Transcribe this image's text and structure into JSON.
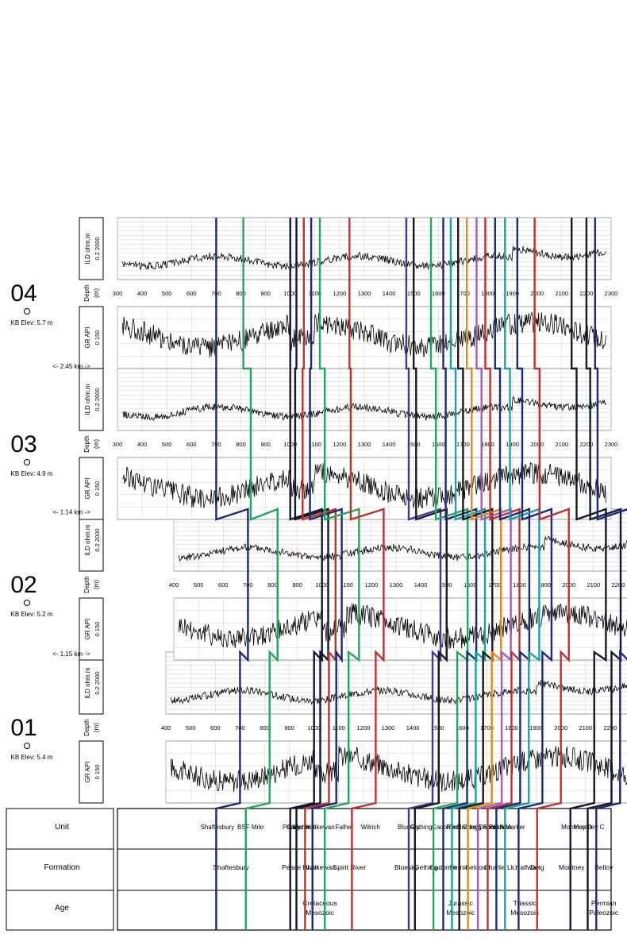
{
  "wells": [
    {
      "name": "01",
      "kb": "KB Elev: 5.4 m",
      "top_depth": 400
    },
    {
      "name": "02",
      "kb": "KB Elev: 5.2 m",
      "top_depth": 400
    },
    {
      "name": "03",
      "kb": "KB Elev: 4.9 m",
      "top_depth": 300
    },
    {
      "name": "04",
      "kb": "KB Elev: 5.7 m",
      "top_depth": 300
    }
  ],
  "spacings": [
    "<- 1.15 km ->",
    "<- 1.14 km ->",
    "<- 2.45 km ->"
  ],
  "track_headers": {
    "gr": {
      "label": "GR",
      "unit": "API",
      "min": "0",
      "max": "150"
    },
    "ild": {
      "label": "ILD",
      "unit": "ohm.m",
      "min": "0.2",
      "max": "2000"
    },
    "depth": {
      "label": "Depth",
      "unit": "(m)"
    }
  },
  "depth_ticks": [
    300,
    400,
    500,
    600,
    700,
    800,
    900,
    1000,
    1100,
    1200,
    1300,
    1400,
    1500,
    1600,
    1700,
    1800,
    1900,
    2000,
    2100,
    2200,
    2300
  ],
  "legend": {
    "headers": {
      "age": "Age",
      "formation": "Formation",
      "unit": "Unit"
    },
    "units": [
      {
        "label": "Shaftesbury",
        "depth": 705
      },
      {
        "label": "BSF Mrkr",
        "depth": 840
      },
      {
        "label": "Paddy",
        "depth": 1005
      },
      {
        "label": "Cadotte",
        "depth": 1030
      },
      {
        "label": "Harmon",
        "depth": 1060
      },
      {
        "label": "Notikewan",
        "depth": 1120
      },
      {
        "label": "Falher",
        "depth": 1220
      },
      {
        "label": "Wilrich",
        "depth": 1325
      },
      {
        "label": "Bluesky",
        "depth": 1480
      },
      {
        "label": "Gething",
        "depth": 1530
      },
      {
        "label": "Cadomin",
        "depth": 1625
      },
      {
        "label": "Rock Creek",
        "depth": 1700
      },
      {
        "label": "Nordegg",
        "depth": 1725
      },
      {
        "label": "Debolt",
        "depth": 1800
      },
      {
        "label": "Shunda",
        "depth": 1825
      },
      {
        "label": "Pekisko",
        "depth": 1850
      },
      {
        "label": "A Marker",
        "depth": 1900
      },
      {
        "label": "Montney D",
        "depth": 2160
      },
      {
        "label": "Montney C",
        "depth": 2210
      }
    ],
    "formations": [
      {
        "label": "Shaftesbury",
        "depth": 760
      },
      {
        "label": "Peace River",
        "depth": 1040
      },
      {
        "label": "Notikewan",
        "depth": 1120
      },
      {
        "label": "Spirit River",
        "depth": 1240
      },
      {
        "label": "Bluesky",
        "depth": 1470
      },
      {
        "label": "Gething",
        "depth": 1550
      },
      {
        "label": "Cadomin",
        "depth": 1620
      },
      {
        "label": "Fernie",
        "depth": 1685
      },
      {
        "label": "Belcourt",
        "depth": 1760
      },
      {
        "label": "Charlie Lk.",
        "depth": 1850
      },
      {
        "label": "Halfway",
        "depth": 1960
      },
      {
        "label": "Doig",
        "depth": 2000
      },
      {
        "label": "Montney",
        "depth": 2140
      },
      {
        "label": "Belloy",
        "depth": 2270
      }
    ],
    "ages": [
      {
        "label": "Mesozoic Cretaceous",
        "depth": 1120
      },
      {
        "label": "Mesozoic Jurassic",
        "depth": 1690
      },
      {
        "label": "Mesozoic Triassic",
        "depth": 1950
      },
      {
        "label": "Paleozoic Permian",
        "depth": 2270
      }
    ]
  },
  "markers": [
    {
      "color": "#1b2a78",
      "depths": [
        700,
        700,
        700,
        700
      ]
    },
    {
      "color": "#1fa85a",
      "depths": [
        820,
        820,
        840,
        810
      ]
    },
    {
      "color": "#15182e",
      "depths": [
        1000,
        1000,
        1000,
        1000
      ]
    },
    {
      "color": "#15182e",
      "depths": [
        1025,
        1025,
        1020,
        1025
      ]
    },
    {
      "color": "#c0302f",
      "depths": [
        1060,
        1055,
        1050,
        1055
      ]
    },
    {
      "color": "#1b2a78",
      "depths": [
        1090,
        1080,
        1080,
        1085
      ]
    },
    {
      "color": "#1fa85a",
      "depths": [
        1140,
        1150,
        1140,
        1120
      ]
    },
    {
      "color": "#c0302f",
      "depths": [
        1250,
        1250,
        1245,
        1240
      ]
    },
    {
      "color": "#3e3a9a",
      "depths": [
        1480,
        1480,
        1480,
        1470
      ]
    },
    {
      "color": "#1a1a1a",
      "depths": [
        1505,
        1505,
        1510,
        1500
      ]
    },
    {
      "color": "#1fa85a",
      "depths": [
        1580,
        1590,
        1590,
        1570
      ]
    },
    {
      "color": "#1b2a78",
      "depths": [
        1620,
        1625,
        1630,
        1620
      ]
    },
    {
      "color": "#17a5a0",
      "depths": [
        1655,
        1660,
        1670,
        1650
      ]
    },
    {
      "color": "#1a1a1a",
      "depths": [
        1685,
        1690,
        1700,
        1680
      ]
    },
    {
      "color": "#e08a1e",
      "depths": [
        1720,
        1725,
        1735,
        1715
      ]
    },
    {
      "color": "#a05cc0",
      "depths": [
        1760,
        1765,
        1775,
        1755
      ]
    },
    {
      "color": "#c0302f",
      "depths": [
        1800,
        1800,
        1810,
        1790
      ]
    },
    {
      "color": "#1b2a78",
      "depths": [
        1835,
        1840,
        1850,
        1830
      ]
    },
    {
      "color": "#17a5a0",
      "depths": [
        1870,
        1880,
        1890,
        1870
      ]
    },
    {
      "color": "#1b2a78",
      "depths": [
        1925,
        1930,
        1940,
        1920
      ]
    },
    {
      "color": "#c0302f",
      "depths": [
        2000,
        2000,
        2010,
        1990
      ]
    },
    {
      "color": "#15182e",
      "depths": [
        2135,
        2150,
        2160,
        2140
      ]
    },
    {
      "color": "#15182e",
      "depths": [
        2205,
        2210,
        2215,
        2200
      ]
    },
    {
      "color": "#1b2a78",
      "depths": [
        2240,
        2240,
        2245,
        2235
      ]
    }
  ]
}
